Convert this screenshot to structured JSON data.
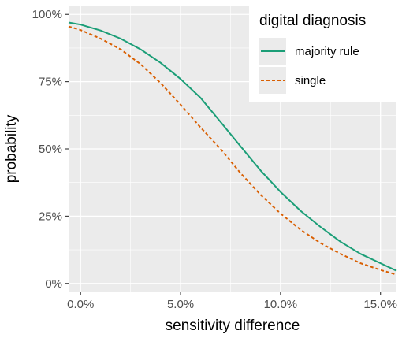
{
  "chart_data": {
    "type": "line",
    "xlabel": "sensitivity difference",
    "ylabel": "probability",
    "xlim": [
      -0.006,
      0.158
    ],
    "ylim": [
      -0.03,
      1.03
    ],
    "x_ticks": [
      0.0,
      0.05,
      0.1,
      0.15
    ],
    "x_tick_labels": [
      "0.0%",
      "5.0%",
      "10.0%",
      "15.0%"
    ],
    "y_ticks": [
      0.0,
      0.25,
      0.5,
      0.75,
      1.0
    ],
    "y_tick_labels": [
      "0%",
      "25%",
      "50%",
      "75%",
      "100%"
    ],
    "grid": true,
    "legend": {
      "title": "digital diagnosis",
      "placement": "top-right"
    },
    "series": [
      {
        "name": "majority rule",
        "color": "#1b9e77",
        "dash": "solid",
        "x": [
          -0.006,
          0.0,
          0.01,
          0.02,
          0.03,
          0.04,
          0.05,
          0.06,
          0.07,
          0.08,
          0.09,
          0.1,
          0.11,
          0.12,
          0.13,
          0.14,
          0.15,
          0.158
        ],
        "y": [
          0.97,
          0.962,
          0.94,
          0.91,
          0.87,
          0.82,
          0.76,
          0.69,
          0.6,
          0.51,
          0.42,
          0.34,
          0.27,
          0.21,
          0.155,
          0.11,
          0.075,
          0.047
        ]
      },
      {
        "name": "single",
        "color": "#d95f02",
        "dash": "dashed",
        "x": [
          -0.006,
          0.0,
          0.01,
          0.02,
          0.03,
          0.04,
          0.05,
          0.06,
          0.07,
          0.08,
          0.09,
          0.1,
          0.11,
          0.12,
          0.13,
          0.14,
          0.15,
          0.158
        ],
        "y": [
          0.955,
          0.942,
          0.91,
          0.87,
          0.815,
          0.745,
          0.665,
          0.58,
          0.5,
          0.41,
          0.33,
          0.26,
          0.2,
          0.15,
          0.11,
          0.075,
          0.05,
          0.033
        ]
      }
    ]
  }
}
